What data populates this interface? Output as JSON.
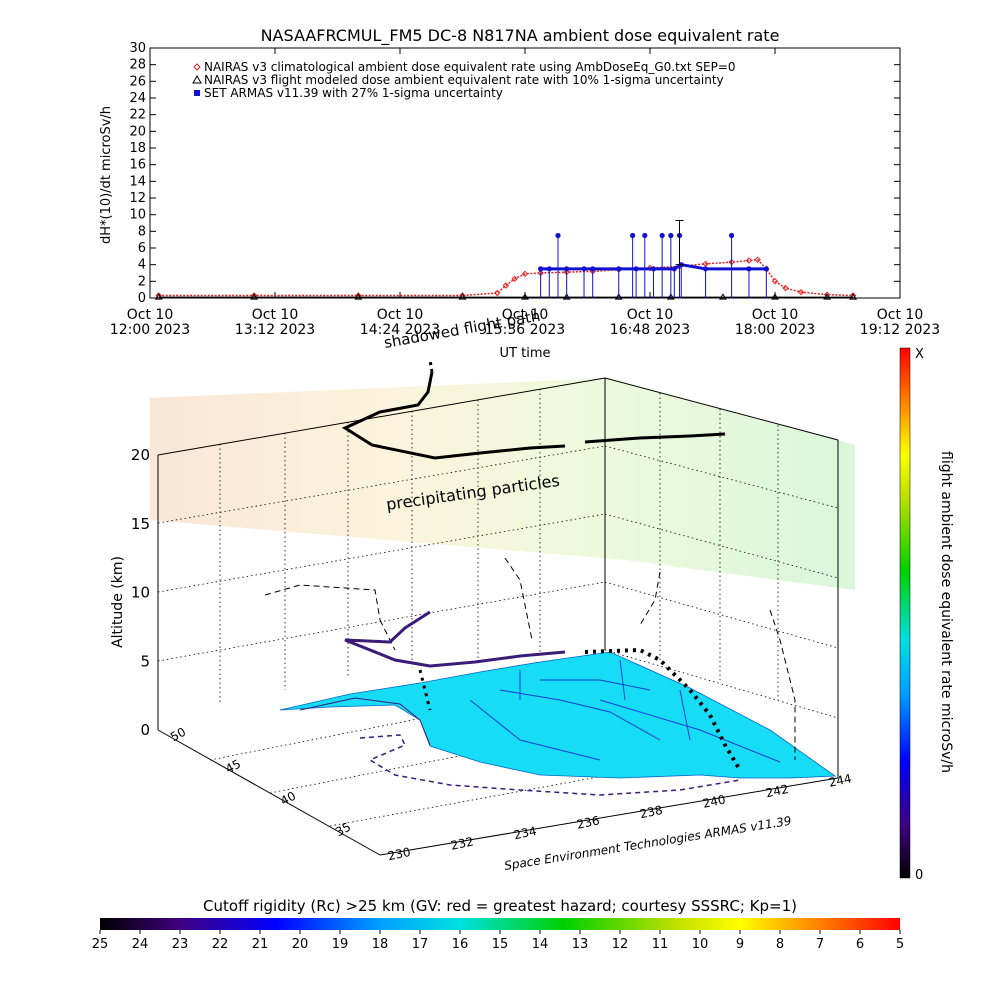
{
  "chart_data": [
    {
      "type": "scatter",
      "title": "NASAAFRCMUL_FM5 DC-8   N817NA ambient dose equivalent rate",
      "xlabel": "UT time",
      "ylabel": "dH*(10)/dt microSv/h",
      "ylim": [
        0,
        30
      ],
      "yticks": [
        0,
        2,
        4,
        6,
        8,
        10,
        12,
        14,
        16,
        18,
        20,
        22,
        24,
        26,
        28,
        30
      ],
      "xlim": [
        "2023-10-10 12:00",
        "2023-10-10 19:12"
      ],
      "xticks": [
        {
          "t": "2023-10-10 12:00",
          "line1": "Oct 10",
          "line2": "12:00 2023"
        },
        {
          "t": "2023-10-10 13:12",
          "line1": "Oct 10",
          "line2": "13:12 2023"
        },
        {
          "t": "2023-10-10 14:24",
          "line1": "Oct 10",
          "line2": "14:24 2023"
        },
        {
          "t": "2023-10-10 15:36",
          "line1": "Oct 10",
          "line2": "15:36 2023"
        },
        {
          "t": "2023-10-10 16:48",
          "line1": "Oct 10",
          "line2": "16:48 2023"
        },
        {
          "t": "2023-10-10 18:00",
          "line1": "Oct 10",
          "line2": "18:00 2023"
        },
        {
          "t": "2023-10-10 19:12",
          "line1": "Oct 10",
          "line2": "19:12 2023"
        }
      ],
      "legend_position": "top-left",
      "series": [
        {
          "name": "NAIRAS v3 climatological ambient dose equivalent rate using AmbDoseEq_G0.txt SEP=0",
          "color": "#e02020",
          "marker": "diamond",
          "points": [
            [
              "2023-10-10 12:05",
              0.3
            ],
            [
              "2023-10-10 13:00",
              0.3
            ],
            [
              "2023-10-10 14:00",
              0.3
            ],
            [
              "2023-10-10 15:00",
              0.3
            ],
            [
              "2023-10-10 15:20",
              0.6
            ],
            [
              "2023-10-10 15:25",
              1.5
            ],
            [
              "2023-10-10 15:30",
              2.3
            ],
            [
              "2023-10-10 15:36",
              2.9
            ],
            [
              "2023-10-10 15:45",
              3.0
            ],
            [
              "2023-10-10 16:00",
              3.1
            ],
            [
              "2023-10-10 16:15",
              3.2
            ],
            [
              "2023-10-10 16:30",
              3.4
            ],
            [
              "2023-10-10 16:48",
              3.6
            ],
            [
              "2023-10-10 17:05",
              3.8
            ],
            [
              "2023-10-10 17:20",
              4.1
            ],
            [
              "2023-10-10 17:35",
              4.3
            ],
            [
              "2023-10-10 17:45",
              4.5
            ],
            [
              "2023-10-10 17:50",
              4.6
            ],
            [
              "2023-10-10 17:55",
              3.5
            ],
            [
              "2023-10-10 18:00",
              2.0
            ],
            [
              "2023-10-10 18:06",
              1.2
            ],
            [
              "2023-10-10 18:15",
              0.7
            ],
            [
              "2023-10-10 18:30",
              0.4
            ],
            [
              "2023-10-10 18:45",
              0.3
            ]
          ]
        },
        {
          "name": "NAIRAS v3 flight modeled dose ambient equivalent rate with 10% 1-sigma uncertainty",
          "color": "#000000",
          "marker": "triangle",
          "points": [
            [
              "2023-10-10 12:05",
              0.1
            ],
            [
              "2023-10-10 13:00",
              0.1
            ],
            [
              "2023-10-10 14:00",
              0.1
            ],
            [
              "2023-10-10 15:00",
              0.1
            ],
            [
              "2023-10-10 15:36",
              0.1
            ],
            [
              "2023-10-10 16:00",
              0.1
            ],
            [
              "2023-10-10 16:30",
              0.1
            ],
            [
              "2023-10-10 17:00",
              0.1
            ],
            [
              "2023-10-10 17:30",
              0.1
            ],
            [
              "2023-10-10 18:00",
              0.1
            ],
            [
              "2023-10-10 18:30",
              0.1
            ],
            [
              "2023-10-10 18:45",
              0.1
            ]
          ]
        },
        {
          "name": "SET ARMAS v11.39 with 27% 1-sigma uncertainty",
          "color": "#1010d0",
          "marker": "filled-circle",
          "points": [
            [
              "2023-10-10 15:45",
              3.5
            ],
            [
              "2023-10-10 15:50",
              3.5
            ],
            [
              "2023-10-10 15:55",
              7.5
            ],
            [
              "2023-10-10 16:00",
              3.5
            ],
            [
              "2023-10-10 16:10",
              3.5
            ],
            [
              "2023-10-10 16:15",
              3.5
            ],
            [
              "2023-10-10 16:30",
              3.5
            ],
            [
              "2023-10-10 16:38",
              7.5
            ],
            [
              "2023-10-10 16:40",
              3.5
            ],
            [
              "2023-10-10 16:45",
              7.5
            ],
            [
              "2023-10-10 16:50",
              3.5
            ],
            [
              "2023-10-10 16:55",
              7.5
            ],
            [
              "2023-10-10 17:00",
              7.5
            ],
            [
              "2023-10-10 17:02",
              3.5
            ],
            [
              "2023-10-10 17:05",
              7.5
            ],
            [
              "2023-10-10 17:06",
              4.0
            ],
            [
              "2023-10-10 17:20",
              3.5
            ],
            [
              "2023-10-10 17:35",
              7.5
            ],
            [
              "2023-10-10 17:45",
              3.5
            ],
            [
              "2023-10-10 17:55",
              3.5
            ]
          ],
          "error_bar": {
            "t": "2023-10-10 17:05",
            "low": 4.0,
            "high": 9.3
          }
        }
      ]
    },
    {
      "type": "3d-flight-track",
      "labels": {
        "annot_track": "shadowed flight path",
        "annot_particles": "precipitating particles",
        "x_axis_title": "UT time",
        "z_axis_title": "Altitude (km)",
        "credit": "Space Environment Technologies ARMAS v11.39"
      },
      "z_ticks": [
        0,
        5,
        10,
        15,
        20
      ],
      "latitude_ticks": [
        35,
        40,
        45,
        50
      ],
      "longitude_ticks": [
        230,
        232,
        234,
        236,
        238,
        240,
        242,
        244
      ],
      "longitude_tick_labels": [
        "230",
        "232",
        "234",
        "236",
        "238",
        "240",
        "242",
        "244"
      ],
      "surface_color": "#17dcf5",
      "track_color": "#000000",
      "shadow_color": "#3a1b7a",
      "map_line_color": "#3a1b7a"
    }
  ],
  "colorbars": {
    "right": {
      "title": "flight ambient dose equivalent rate microSv/h",
      "top_label": "X",
      "bottom_label": "0"
    },
    "bottom": {
      "title": "Cutoff rigidity (Rc) >25 km (GV: red = greatest hazard; courtesy SSSRC; Kp=1)",
      "ticks": [
        "25",
        "24",
        "23",
        "22",
        "21",
        "20",
        "19",
        "18",
        "17",
        "16",
        "15",
        "14",
        "13",
        "12",
        "11",
        "10",
        "9",
        "8",
        "7",
        "6",
        "5"
      ]
    }
  }
}
